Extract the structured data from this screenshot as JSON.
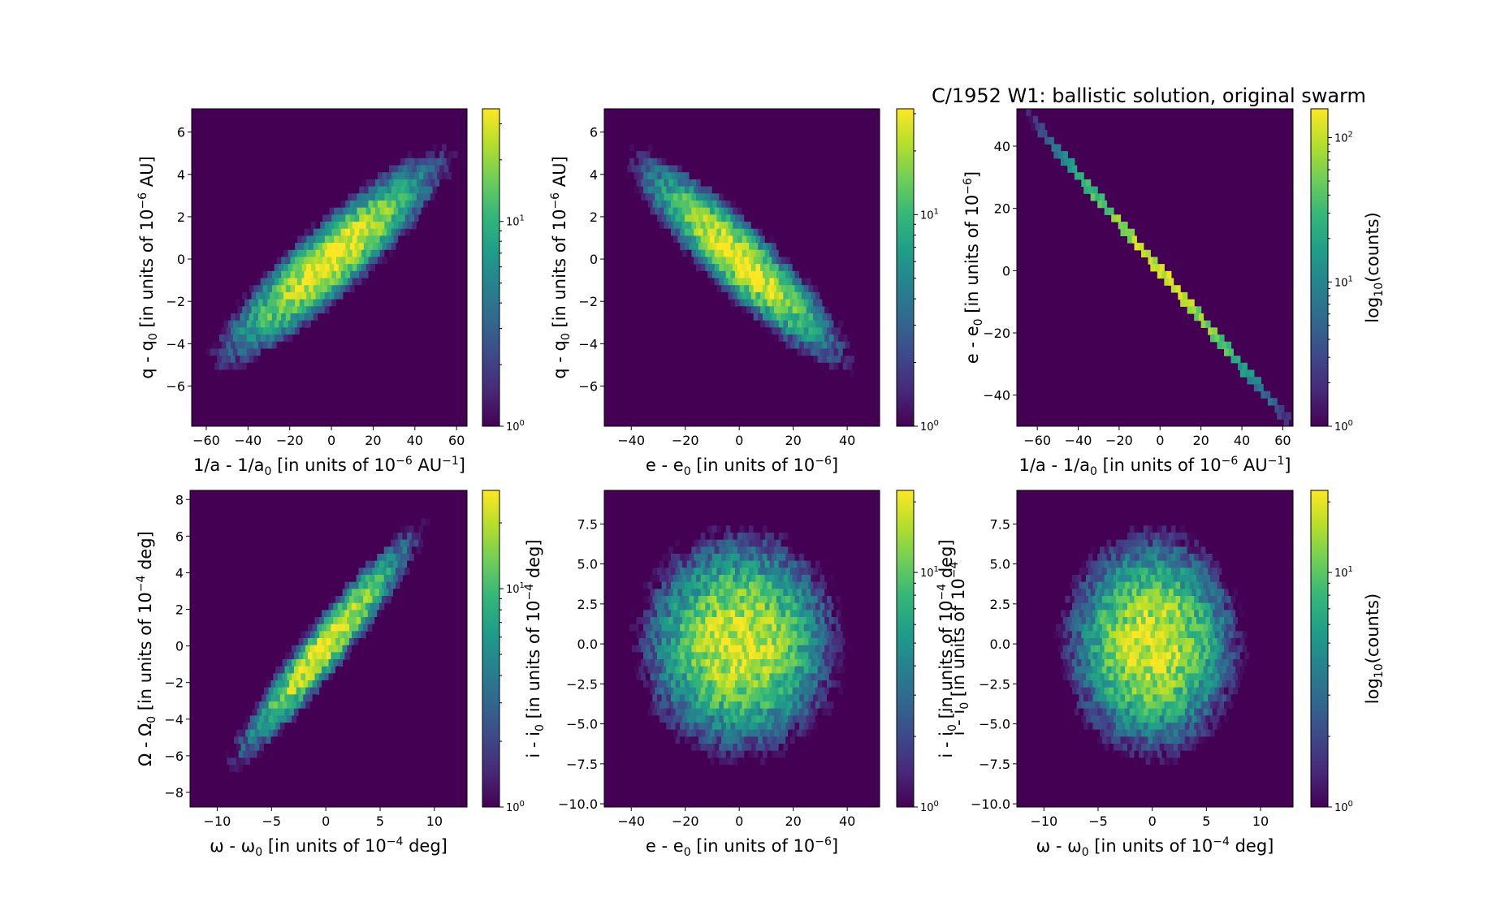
{
  "figure": {
    "title": "C/1952 W1:  ballistic solution, original swarm",
    "colormap": [
      "#440154",
      "#482878",
      "#3e4989",
      "#31688e",
      "#26828e",
      "#1f9e89",
      "#35b779",
      "#6ece58",
      "#b5de2b",
      "#fde725"
    ],
    "background_color": "#440154"
  },
  "chart_data": [
    {
      "type": "heatmap",
      "name": "panel-1",
      "xlabel": {
        "base": "1/a - 1/a",
        "sub": "0",
        "pre": " [in units of 10",
        "sup": "−6",
        "post": " AU",
        "sup2": "−1",
        "post2": "]"
      },
      "ylabel": {
        "base": "q - q",
        "sub": "0",
        "pre": " [in units of 10",
        "sup": "−6",
        "post": " AU]"
      },
      "xlim": [
        -67,
        65
      ],
      "ylim": [
        -7.9,
        7.1
      ],
      "xticks": [
        -60,
        -40,
        -20,
        0,
        20,
        40,
        60
      ],
      "yticks": [
        -6,
        -4,
        -2,
        0,
        2,
        4,
        6
      ],
      "xticklabels": [
        "−60",
        "−40",
        "−20",
        "0",
        "20",
        "40",
        "60"
      ],
      "yticklabels": [
        "−6",
        "−4",
        "−2",
        "0",
        "2",
        "4",
        "6"
      ],
      "density": {
        "kind": "gaussian",
        "mean": [
          0,
          0
        ],
        "sd": [
          22,
          2.0
        ],
        "corr": 0.9,
        "peak_log10": 1.55
      },
      "colorbar": {
        "scale": "log",
        "range_log10": [
          0,
          1.55
        ],
        "ticks": [
          {
            "log10": 0,
            "base": "10",
            "exp": "0"
          },
          {
            "log10": 1,
            "base": "10",
            "exp": "1"
          }
        ],
        "label": ""
      }
    },
    {
      "type": "heatmap",
      "name": "panel-2",
      "xlabel": {
        "base": "e - e",
        "sub": "0",
        "pre": " [in units of 10",
        "sup": "−6",
        "post": "]"
      },
      "ylabel": {
        "base": "q - q",
        "sub": "0",
        "pre": " [in units of 10",
        "sup": "−6",
        "post": " AU]"
      },
      "xlim": [
        -50,
        52
      ],
      "ylim": [
        -7.9,
        7.1
      ],
      "xticks": [
        -40,
        -20,
        0,
        20,
        40
      ],
      "yticks": [
        -6,
        -4,
        -2,
        0,
        2,
        4,
        6
      ],
      "xticklabels": [
        "−40",
        "−20",
        "0",
        "20",
        "40"
      ],
      "yticklabels": [
        "−6",
        "−4",
        "−2",
        "0",
        "2",
        "4",
        "6"
      ],
      "density": {
        "kind": "gaussian",
        "mean": [
          0,
          0
        ],
        "sd": [
          16,
          2.0
        ],
        "corr": -0.9,
        "peak_log10": 1.5
      },
      "colorbar": {
        "scale": "log",
        "range_log10": [
          0,
          1.5
        ],
        "ticks": [
          {
            "log10": 0,
            "base": "10",
            "exp": "0"
          },
          {
            "log10": 1,
            "base": "10",
            "exp": "1"
          }
        ],
        "label": ""
      }
    },
    {
      "type": "heatmap",
      "name": "panel-3",
      "xlabel": {
        "base": "1/a - 1/a",
        "sub": "0",
        "pre": " [in units of 10",
        "sup": "−6",
        "post": " AU",
        "sup2": "−1",
        "post2": "]"
      },
      "ylabel": {
        "base": "e - e",
        "sub": "0",
        "pre": " [in units of 10",
        "sup": "−6",
        "post": "]"
      },
      "xlim": [
        -70,
        65
      ],
      "ylim": [
        -50,
        52
      ],
      "xticks": [
        -60,
        -40,
        -20,
        0,
        20,
        40,
        60
      ],
      "yticks": [
        -40,
        -20,
        0,
        20,
        40
      ],
      "xticklabels": [
        "−60",
        "−40",
        "−20",
        "0",
        "20",
        "40",
        "60"
      ],
      "yticklabels": [
        "−40",
        "−20",
        "0",
        "20",
        "40"
      ],
      "density": {
        "kind": "line",
        "x_range": [
          -65,
          63
        ],
        "slope": -0.77,
        "sd": 22,
        "peak_log10": 2.0
      },
      "colorbar": {
        "scale": "log",
        "range_log10": [
          0,
          2.2
        ],
        "ticks": [
          {
            "log10": 0,
            "base": "10",
            "exp": "0"
          },
          {
            "log10": 1,
            "base": "10",
            "exp": "1"
          },
          {
            "log10": 2,
            "base": "10",
            "exp": "2"
          }
        ],
        "label": "log10(counts)"
      }
    },
    {
      "type": "heatmap",
      "name": "panel-4",
      "xlabel": {
        "base": "ω - ω",
        "sub": "0",
        "pre": " [in units of 10",
        "sup": "−4",
        "post": " deg]"
      },
      "ylabel": {
        "base": "Ω - Ω",
        "sub": "0",
        "pre": " [in units of 10",
        "sup": "−4",
        "post": " deg]"
      },
      "xlim": [
        -12.5,
        13
      ],
      "ylim": [
        -8.8,
        8.5
      ],
      "xticks": [
        -10,
        -5,
        0,
        5,
        10
      ],
      "yticks": [
        -8,
        -6,
        -4,
        -2,
        0,
        2,
        4,
        6,
        8
      ],
      "xticklabels": [
        "−10",
        "−5",
        "0",
        "5",
        "10"
      ],
      "yticklabels": [
        "−8",
        "−6",
        "−4",
        "−2",
        "0",
        "2",
        "4",
        "6",
        "8"
      ],
      "density": {
        "kind": "gaussian",
        "mean": [
          0,
          0
        ],
        "sd": [
          3.5,
          2.6
        ],
        "corr": 0.95,
        "peak_log10": 1.45
      },
      "colorbar": {
        "scale": "log",
        "range_log10": [
          0,
          1.45
        ],
        "ticks": [
          {
            "log10": 0,
            "base": "10",
            "exp": "0"
          },
          {
            "log10": 1,
            "base": "10",
            "exp": "1"
          }
        ],
        "label": ""
      }
    },
    {
      "type": "heatmap",
      "name": "panel-5",
      "xlabel": {
        "base": "e - e",
        "sub": "0",
        "pre": " [in units of 10",
        "sup": "−6",
        "post": "]"
      },
      "ylabel": {
        "base": "i - i",
        "sub": "0",
        "pre": " [in units of 10",
        "sup": "−4",
        "post": " deg]"
      },
      "xlim": [
        -50,
        52
      ],
      "ylim": [
        -10.2,
        9.6
      ],
      "xticks": [
        -40,
        -20,
        0,
        20,
        40
      ],
      "yticks": [
        -10,
        -7.5,
        -5,
        -2.5,
        0,
        2.5,
        5,
        7.5
      ],
      "xticklabels": [
        "−40",
        "−20",
        "0",
        "20",
        "40"
      ],
      "yticklabels": [
        "−10.0",
        "−7.5",
        "−5.0",
        "−2.5",
        "0.0",
        "2.5",
        "5.0",
        "7.5"
      ],
      "density": {
        "kind": "gaussian",
        "mean": [
          0,
          0
        ],
        "sd": [
          16,
          3.0
        ],
        "corr": 0.0,
        "peak_log10": 1.3
      },
      "colorbar": {
        "scale": "log",
        "range_log10": [
          0,
          1.35
        ],
        "ticks": [
          {
            "log10": 0,
            "base": "10",
            "exp": "0"
          },
          {
            "log10": 1,
            "base": "10",
            "exp": "1"
          }
        ],
        "label": "",
        "overlay_label": {
          "base": "i - i",
          "sub": "0",
          "pre": " [in units of 10",
          "sup": "−4",
          "post": ""
        }
      }
    },
    {
      "type": "heatmap",
      "name": "panel-6",
      "xlabel": {
        "base": "ω - ω",
        "sub": "0",
        "pre": " [in units of 10",
        "sup": "−4",
        "post": " deg]"
      },
      "ylabel": {
        "base": "i - i",
        "sub": "0",
        "pre": " [in units of 10",
        "sup": "−4",
        "post": " deg]"
      },
      "xlim": [
        -12.5,
        13
      ],
      "ylim": [
        -10.2,
        9.6
      ],
      "xticks": [
        -10,
        -5,
        0,
        5,
        10
      ],
      "yticks": [
        -10,
        -7.5,
        -5,
        -2.5,
        0,
        2.5,
        5,
        7.5
      ],
      "xticklabels": [
        "−10",
        "−5",
        "0",
        "5",
        "10"
      ],
      "yticklabels": [
        "−10.0",
        "−7.5",
        "−5.0",
        "−2.5",
        "0.0",
        "2.5",
        "5.0",
        "7.5"
      ],
      "density": {
        "kind": "gaussian",
        "mean": [
          0,
          0
        ],
        "sd": [
          3.5,
          3.0
        ],
        "corr": 0.0,
        "peak_log10": 1.3
      },
      "colorbar": {
        "scale": "log",
        "range_log10": [
          0,
          1.35
        ],
        "ticks": [
          {
            "log10": 0,
            "base": "10",
            "exp": "0"
          },
          {
            "log10": 1,
            "base": "10",
            "exp": "1"
          }
        ],
        "label": "log10(counts)"
      }
    }
  ]
}
